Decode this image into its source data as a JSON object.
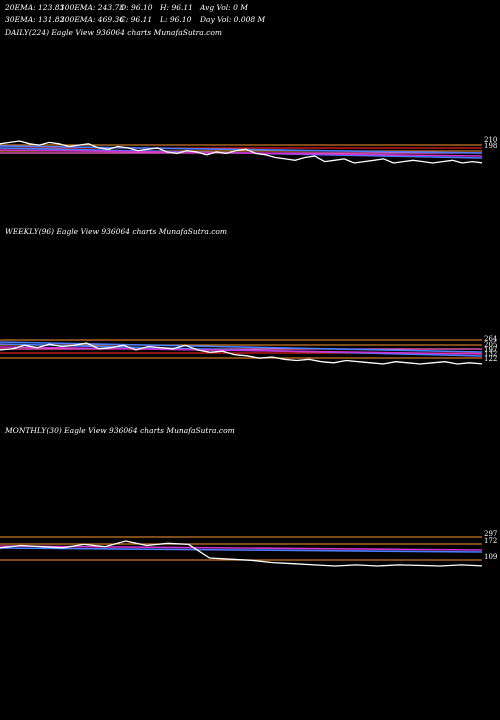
{
  "header": {
    "row1": [
      "20EMA: 123.83",
      "100EMA: 243.73",
      "O: 96.10",
      "H: 96.11",
      "Avg Vol: 0  M"
    ],
    "row2": [
      "30EMA: 131.83",
      "200EMA: 469.36",
      "C: 96.11",
      "L: 96.10",
      "Day Vol: 0.008 M"
    ]
  },
  "colors": {
    "background": "#000000",
    "price": "#ffffff",
    "ema_blue": "#4a7dff",
    "ema_magenta": "#cc33cc",
    "level_orange": "#c8782a",
    "level_red": "#e02020",
    "level_pink": "#ff66cc"
  },
  "chart_data": [
    {
      "type": "line",
      "title": "DAILY(224) Eagle  View  936064  charts MunafaSutra.com",
      "price_axis_labels": [
        "210",
        "198"
      ],
      "series": [
        {
          "values": [
            110,
            111,
            112,
            110,
            109,
            111,
            110,
            108,
            109,
            110,
            107,
            106,
            108,
            107,
            105,
            106,
            107,
            104,
            103,
            105,
            104,
            102,
            104,
            103,
            105,
            106,
            103,
            102,
            100,
            99,
            98,
            100,
            101,
            97,
            98,
            99,
            96,
            97,
            98,
            99,
            96,
            97,
            98,
            97,
            96,
            97,
            98,
            96,
            97,
            96.11
          ]
        }
      ]
    },
    {
      "type": "line",
      "title": "WEEKLY(96) Eagle  View  936064  charts MunafaSutra.com",
      "price_axis_labels": [
        "264",
        "205",
        "197",
        "132",
        "122"
      ],
      "series": [
        {
          "values": [
            108,
            109,
            112,
            110,
            113,
            111,
            112,
            114,
            109,
            110,
            112,
            108,
            111,
            110,
            109,
            112,
            108,
            106,
            107,
            104,
            103,
            101,
            102,
            100,
            99,
            100,
            98,
            97,
            99,
            98,
            97,
            96,
            98,
            97,
            96,
            97,
            98,
            96,
            97,
            96.11
          ]
        }
      ]
    },
    {
      "type": "line",
      "title": "MONTHLY(30) Eagle  View  936064  charts MunafaSutra.com",
      "price_axis_labels": [
        "297",
        "172",
        "109"
      ],
      "series": [
        {
          "values": [
            112,
            114,
            113,
            112,
            115,
            113,
            118,
            114,
            116,
            115,
            103,
            102,
            101,
            99,
            98,
            97,
            96,
            97,
            96,
            97,
            96.5,
            96,
            97,
            96.11
          ]
        }
      ]
    }
  ]
}
